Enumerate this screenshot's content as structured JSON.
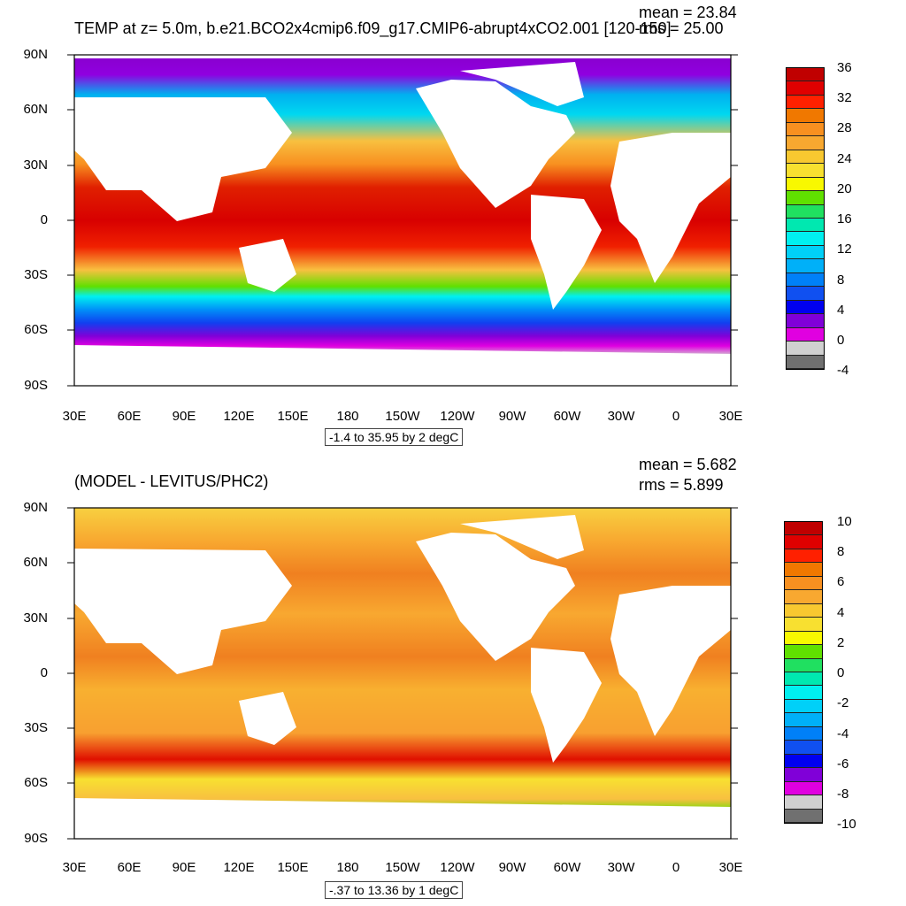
{
  "panels": [
    {
      "title": "TEMP at z=   5.0m, b.e21.BCO2x4cmip6.f09_g17.CMIP6-abrupt4xCO2.001 [120-150]",
      "mean": "mean = 23.84",
      "rms": "rms = 25.00",
      "range_label": "-1.4 to 35.95 by 2 degC",
      "colorbar_labels": [
        "36",
        "32",
        "28",
        "24",
        "20",
        "16",
        "12",
        "8",
        "4",
        "0",
        "-4"
      ],
      "colorbar_colors": [
        "#c00000",
        "#e00000",
        "#ff2000",
        "#f07800",
        "#f89020",
        "#f8a830",
        "#f8c830",
        "#f8e030",
        "#f8f800",
        "#60e000",
        "#20e060",
        "#00e8b0",
        "#00f0f0",
        "#00d0f8",
        "#00b0f8",
        "#0080f8",
        "#1050f0",
        "#0000f0",
        "#8000d8",
        "#e000e0",
        "#d0d0d0",
        "#707070"
      ]
    },
    {
      "title": "(MODEL - LEVITUS/PHC2)",
      "mean": "mean = 5.682",
      "rms": "rms = 5.899",
      "range_label": "-.37 to 13.36 by 1 degC",
      "colorbar_labels": [
        "10",
        "8",
        "6",
        "4",
        "2",
        "0",
        "-2",
        "-4",
        "-6",
        "-8",
        "-10"
      ],
      "colorbar_colors": [
        "#c00000",
        "#e00000",
        "#ff2000",
        "#f07800",
        "#f89020",
        "#f8a830",
        "#f8c830",
        "#f8e030",
        "#f8f800",
        "#60e000",
        "#20e060",
        "#00e8b0",
        "#00f0f0",
        "#00d0f8",
        "#00b0f8",
        "#0080f8",
        "#1050f0",
        "#0000f0",
        "#8000d8",
        "#e000e0",
        "#d0d0d0",
        "#707070"
      ]
    }
  ],
  "lat_labels": [
    "90N",
    "60N",
    "30N",
    "0",
    "30S",
    "60S",
    "90S"
  ],
  "lon_labels": [
    "30E",
    "60E",
    "90E",
    "120E",
    "150E",
    "180",
    "150W",
    "120W",
    "90W",
    "60W",
    "30W",
    "0",
    "30E"
  ]
}
